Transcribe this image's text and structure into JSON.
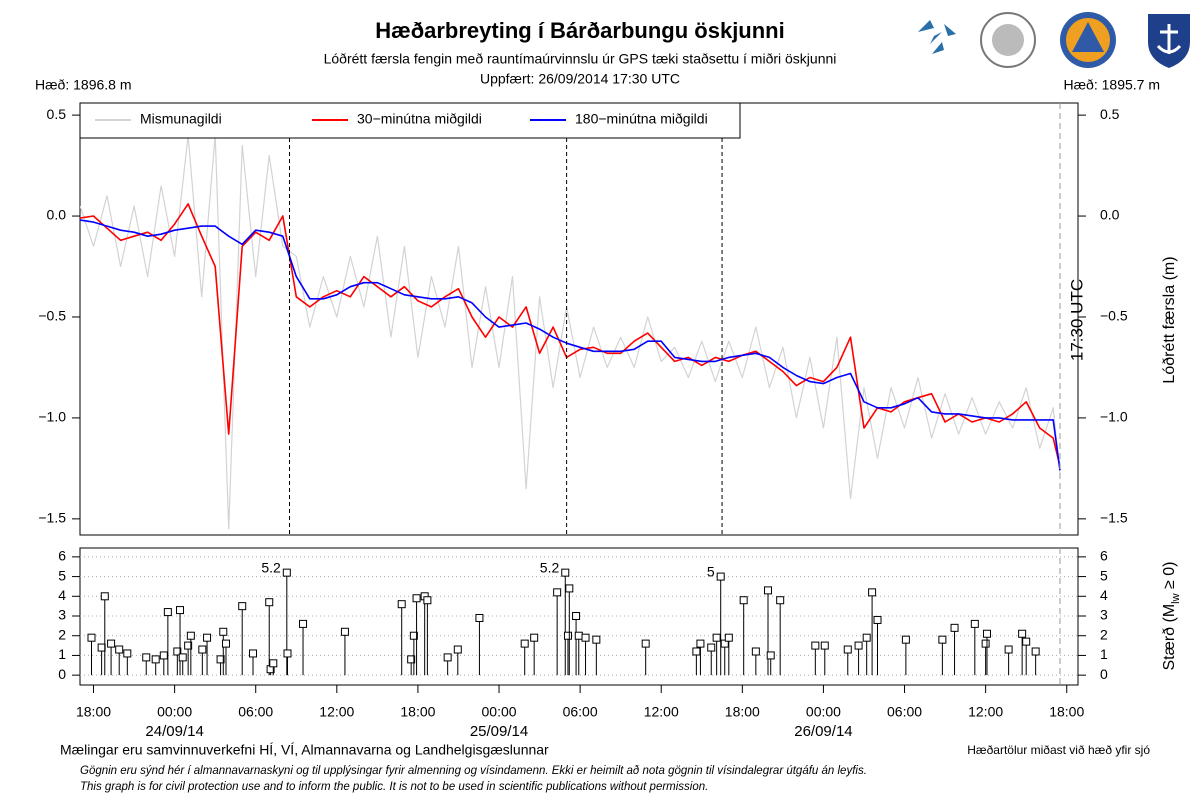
{
  "header": {
    "title": "Hæðarbreyting í Bárðarbungu öskjunni",
    "subtitle": "Lóðrétt færsla fengin með rauntímaúrvinnslu úr GPS tæki staðsettu í miðri öskjunni",
    "updated": "Uppfært: 26/09/2014 17:30 UTC",
    "height_left": "Hæð: 1896.8 m",
    "height_right": "Hæð: 1895.7 m"
  },
  "chart_data": [
    {
      "type": "line",
      "y2label": "Lóðrétt færsla (m)",
      "xlim": [
        "2014-09-23T17:00",
        "2014-09-26T18:50"
      ],
      "ylim": [
        -1.58,
        0.56
      ],
      "yticks": [
        0.5,
        {
          "value": 0,
          "label": "0.0"
        },
        {
          "value": -0.5,
          "label": "−0.5"
        },
        {
          "value": -1,
          "label": "−1.0"
        },
        {
          "value": -1.5,
          "label": "−1.5"
        }
      ],
      "legend": "top-left",
      "vlines": [
        "2014-09-24T08:30",
        "2014-09-25T05:00",
        "2014-09-25T16:30"
      ],
      "now": {
        "x": "2014-09-26T17:30",
        "label": "17:30 UTC"
      },
      "x": [
        "2014-09-23T17:00",
        "2014-09-23T18:00",
        "2014-09-23T19:00",
        "2014-09-23T20:00",
        "2014-09-23T21:00",
        "2014-09-23T22:00",
        "2014-09-23T23:00",
        "2014-09-24T00:00",
        "2014-09-24T01:00",
        "2014-09-24T02:00",
        "2014-09-24T03:00",
        "2014-09-24T04:00",
        "2014-09-24T05:00",
        "2014-09-24T06:00",
        "2014-09-24T07:00",
        "2014-09-24T08:00",
        "2014-09-24T09:00",
        "2014-09-24T10:00",
        "2014-09-24T11:00",
        "2014-09-24T12:00",
        "2014-09-24T13:00",
        "2014-09-24T14:00",
        "2014-09-24T15:00",
        "2014-09-24T16:00",
        "2014-09-24T17:00",
        "2014-09-24T18:00",
        "2014-09-24T19:00",
        "2014-09-24T20:00",
        "2014-09-24T21:00",
        "2014-09-24T22:00",
        "2014-09-24T23:00",
        "2014-09-25T00:00",
        "2014-09-25T01:00",
        "2014-09-25T02:00",
        "2014-09-25T03:00",
        "2014-09-25T04:00",
        "2014-09-25T05:00",
        "2014-09-25T06:00",
        "2014-09-25T07:00",
        "2014-09-25T08:00",
        "2014-09-25T09:00",
        "2014-09-25T10:00",
        "2014-09-25T11:00",
        "2014-09-25T12:00",
        "2014-09-25T13:00",
        "2014-09-25T14:00",
        "2014-09-25T15:00",
        "2014-09-25T16:00",
        "2014-09-25T17:00",
        "2014-09-25T18:00",
        "2014-09-25T19:00",
        "2014-09-25T20:00",
        "2014-09-25T21:00",
        "2014-09-25T22:00",
        "2014-09-25T23:00",
        "2014-09-26T00:00",
        "2014-09-26T01:00",
        "2014-09-26T02:00",
        "2014-09-26T03:00",
        "2014-09-26T04:00",
        "2014-09-26T05:00",
        "2014-09-26T06:00",
        "2014-09-26T07:00",
        "2014-09-26T08:00",
        "2014-09-26T09:00",
        "2014-09-26T10:00",
        "2014-09-26T11:00",
        "2014-09-26T12:00",
        "2014-09-26T13:00",
        "2014-09-26T14:00",
        "2014-09-26T15:00",
        "2014-09-26T16:00",
        "2014-09-26T17:00",
        "2014-09-26T17:30"
      ],
      "series": [
        {
          "name": "Mismunagildi",
          "color": "#d3d3d3",
          "width": 1.2,
          "values": [
            0.05,
            -0.15,
            0.1,
            -0.25,
            0.05,
            -0.3,
            0.15,
            -0.2,
            0.4,
            -0.4,
            0.4,
            -1.55,
            0.35,
            -0.3,
            0.3,
            -0.15,
            -0.2,
            -0.55,
            -0.3,
            -0.5,
            -0.2,
            -0.45,
            -0.1,
            -0.6,
            -0.15,
            -0.7,
            -0.3,
            -0.55,
            -0.15,
            -0.75,
            -0.35,
            -0.75,
            -0.3,
            -1.35,
            -0.4,
            -0.85,
            -0.45,
            -0.8,
            -0.55,
            -0.75,
            -0.6,
            -0.75,
            -0.5,
            -0.72,
            -0.65,
            -0.8,
            -0.62,
            -0.82,
            -0.62,
            -0.8,
            -0.55,
            -0.85,
            -0.65,
            -1.0,
            -0.7,
            -1.05,
            -0.6,
            -1.4,
            -0.85,
            -1.2,
            -0.85,
            -1.05,
            -0.8,
            -1.1,
            -0.88,
            -1.08,
            -0.9,
            -1.08,
            -0.92,
            -1.05,
            -0.85,
            -1.15,
            -0.95,
            -1.28
          ]
        },
        {
          "name": "30−minútna miðgildi",
          "color": "#ff0000",
          "width": 1.6,
          "values": [
            -0.01,
            0.0,
            -0.06,
            -0.12,
            -0.1,
            -0.08,
            -0.12,
            -0.04,
            0.06,
            -0.1,
            -0.25,
            -1.08,
            -0.15,
            -0.08,
            -0.12,
            0.0,
            -0.4,
            -0.45,
            -0.4,
            -0.37,
            -0.4,
            -0.3,
            -0.35,
            -0.4,
            -0.35,
            -0.42,
            -0.45,
            -0.4,
            -0.36,
            -0.5,
            -0.6,
            -0.5,
            -0.55,
            -0.45,
            -0.68,
            -0.55,
            -0.7,
            -0.66,
            -0.65,
            -0.68,
            -0.68,
            -0.62,
            -0.58,
            -0.65,
            -0.72,
            -0.7,
            -0.74,
            -0.7,
            -0.72,
            -0.69,
            -0.67,
            -0.72,
            -0.77,
            -0.84,
            -0.8,
            -0.82,
            -0.75,
            -0.6,
            -1.05,
            -0.95,
            -0.97,
            -0.92,
            -0.9,
            -0.88,
            -1.02,
            -0.98,
            -1.02,
            -1.0,
            -1.02,
            -0.98,
            -0.92,
            -1.05,
            -1.1,
            -1.24
          ]
        },
        {
          "name": "180−minútna miðgildi",
          "color": "#0000ff",
          "width": 1.6,
          "values": [
            -0.02,
            -0.03,
            -0.05,
            -0.07,
            -0.08,
            -0.1,
            -0.09,
            -0.07,
            -0.06,
            -0.05,
            -0.05,
            -0.1,
            -0.14,
            -0.07,
            -0.08,
            -0.1,
            -0.3,
            -0.41,
            -0.41,
            -0.39,
            -0.35,
            -0.33,
            -0.33,
            -0.36,
            -0.39,
            -0.4,
            -0.41,
            -0.41,
            -0.4,
            -0.43,
            -0.5,
            -0.55,
            -0.54,
            -0.53,
            -0.56,
            -0.6,
            -0.63,
            -0.65,
            -0.67,
            -0.67,
            -0.67,
            -0.66,
            -0.62,
            -0.62,
            -0.7,
            -0.71,
            -0.72,
            -0.72,
            -0.7,
            -0.69,
            -0.68,
            -0.7,
            -0.75,
            -0.79,
            -0.82,
            -0.83,
            -0.8,
            -0.78,
            -0.92,
            -0.95,
            -0.95,
            -0.93,
            -0.9,
            -0.97,
            -0.98,
            -0.98,
            -0.99,
            -1.0,
            -1.0,
            -1.01,
            -1.01,
            -1.01,
            -1.01,
            -1.26
          ]
        }
      ]
    },
    {
      "type": "stem",
      "ylabel": {
        "prefix": "Stærð (M",
        "sub": "lw",
        "suffix": " ≥ 0)"
      },
      "xlim": [
        "2014-09-23T17:00",
        "2014-09-26T18:50"
      ],
      "ylim": [
        -0.5,
        6.45
      ],
      "yticks": [
        0,
        1,
        2,
        3,
        4,
        5,
        6
      ],
      "grid": true,
      "now": "2014-09-26T17:30",
      "xticks": [
        {
          "value": "2014-09-23T18:00",
          "label": "18:00"
        },
        {
          "value": "2014-09-24T00:00",
          "label": "00:00"
        },
        {
          "value": "2014-09-24T06:00",
          "label": "06:00"
        },
        {
          "value": "2014-09-24T12:00",
          "label": "12:00"
        },
        {
          "value": "2014-09-24T18:00",
          "label": "18:00"
        },
        {
          "value": "2014-09-25T00:00",
          "label": "00:00"
        },
        {
          "value": "2014-09-25T06:00",
          "label": "06:00"
        },
        {
          "value": "2014-09-25T12:00",
          "label": "12:00"
        },
        {
          "value": "2014-09-25T18:00",
          "label": "18:00"
        },
        {
          "value": "2014-09-26T00:00",
          "label": "00:00"
        },
        {
          "value": "2014-09-26T06:00",
          "label": "06:00"
        },
        {
          "value": "2014-09-26T12:00",
          "label": "12:00"
        },
        {
          "value": "2014-09-26T18:00",
          "label": "18:00"
        }
      ],
      "date_labels": [
        {
          "value": "2014-09-24T00:00",
          "label": "24/09/14"
        },
        {
          "value": "2014-09-25T00:00",
          "label": "25/09/14"
        },
        {
          "value": "2014-09-26T00:00",
          "label": "26/09/14"
        }
      ],
      "annotations": [
        {
          "x": "2014-09-24T08:18",
          "y": 5.2,
          "text": "5.2"
        },
        {
          "x": "2014-09-25T04:54",
          "y": 5.2,
          "text": "5.2"
        },
        {
          "x": "2014-09-25T16:24",
          "y": 5.0,
          "text": "5"
        }
      ],
      "x": [
        "2014-09-23T17:51",
        "2014-09-23T18:36",
        "2014-09-23T18:50",
        "2014-09-23T19:18",
        "2014-09-23T19:54",
        "2014-09-23T20:30",
        "2014-09-23T21:54",
        "2014-09-23T22:36",
        "2014-09-23T23:12",
        "2014-09-23T23:30",
        "2014-09-24T00:12",
        "2014-09-24T00:24",
        "2014-09-24T00:36",
        "2014-09-24T01:00",
        "2014-09-24T01:12",
        "2014-09-24T02:03",
        "2014-09-24T02:24",
        "2014-09-24T03:24",
        "2014-09-24T03:36",
        "2014-09-24T03:48",
        "2014-09-24T05:00",
        "2014-09-24T05:48",
        "2014-09-24T07:00",
        "2014-09-24T07:06",
        "2014-09-24T07:18",
        "2014-09-24T08:18",
        "2014-09-24T08:21",
        "2014-09-24T09:30",
        "2014-09-24T12:36",
        "2014-09-24T16:48",
        "2014-09-24T17:30",
        "2014-09-24T17:42",
        "2014-09-24T17:54",
        "2014-09-24T18:30",
        "2014-09-24T18:42",
        "2014-09-24T20:12",
        "2014-09-24T20:57",
        "2014-09-24T22:33",
        "2014-09-25T01:54",
        "2014-09-25T02:36",
        "2014-09-25T04:18",
        "2014-09-25T04:54",
        "2014-09-25T05:06",
        "2014-09-25T05:12",
        "2014-09-25T05:42",
        "2014-09-25T05:54",
        "2014-09-25T06:24",
        "2014-09-25T07:12",
        "2014-09-25T10:51",
        "2014-09-25T14:36",
        "2014-09-25T14:54",
        "2014-09-25T15:42",
        "2014-09-25T16:06",
        "2014-09-25T16:24",
        "2014-09-25T16:42",
        "2014-09-25T17:00",
        "2014-09-25T18:06",
        "2014-09-25T19:00",
        "2014-09-25T19:54",
        "2014-09-25T20:06",
        "2014-09-25T20:48",
        "2014-09-25T23:24",
        "2014-09-26T00:06",
        "2014-09-26T01:48",
        "2014-09-26T02:36",
        "2014-09-26T03:12",
        "2014-09-26T03:36",
        "2014-09-26T04:00",
        "2014-09-26T06:06",
        "2014-09-26T08:48",
        "2014-09-26T09:42",
        "2014-09-26T11:12",
        "2014-09-26T12:00",
        "2014-09-26T12:06",
        "2014-09-26T13:42",
        "2014-09-26T14:42",
        "2014-09-26T15:00",
        "2014-09-26T15:42"
      ],
      "values": [
        1.9,
        1.4,
        4.0,
        1.6,
        1.3,
        1.1,
        0.9,
        0.8,
        1.0,
        3.2,
        1.2,
        3.3,
        0.9,
        1.5,
        2.0,
        1.3,
        1.9,
        0.8,
        2.2,
        1.6,
        3.5,
        1.1,
        3.7,
        0.3,
        0.6,
        5.2,
        1.1,
        2.6,
        2.2,
        3.6,
        0.8,
        2.0,
        3.9,
        4.0,
        3.8,
        0.9,
        1.3,
        2.9,
        1.6,
        1.9,
        4.2,
        5.2,
        2.0,
        4.4,
        3.0,
        2.0,
        1.9,
        1.8,
        1.6,
        1.2,
        1.6,
        1.4,
        1.9,
        5.0,
        1.6,
        1.9,
        3.8,
        1.2,
        4.3,
        1.0,
        3.8,
        1.5,
        1.5,
        1.3,
        1.5,
        1.9,
        4.2,
        2.8,
        1.8,
        1.8,
        2.4,
        2.6,
        1.6,
        2.1,
        1.3,
        2.1,
        1.7,
        1.2
      ]
    }
  ],
  "footer": {
    "credits": "Mælingar eru samvinnuverkefni HÍ, VÍ, Almannavarna og Landhelgisgæslunnar",
    "note": "Hæðartölur miðast við hæð yfir sjó",
    "disclaimer_is": "Gögnin eru sýnd hér í almannavarnaskyni og til upplýsingar fyrir almenning og vísindamenn. Ekki er heimilt að nota gögnin til vísindalegrar útgáfu án leyfis.",
    "disclaimer_en": "This graph is for civil protection use and to inform the public. It is not to be used in scientific publications without permission."
  }
}
